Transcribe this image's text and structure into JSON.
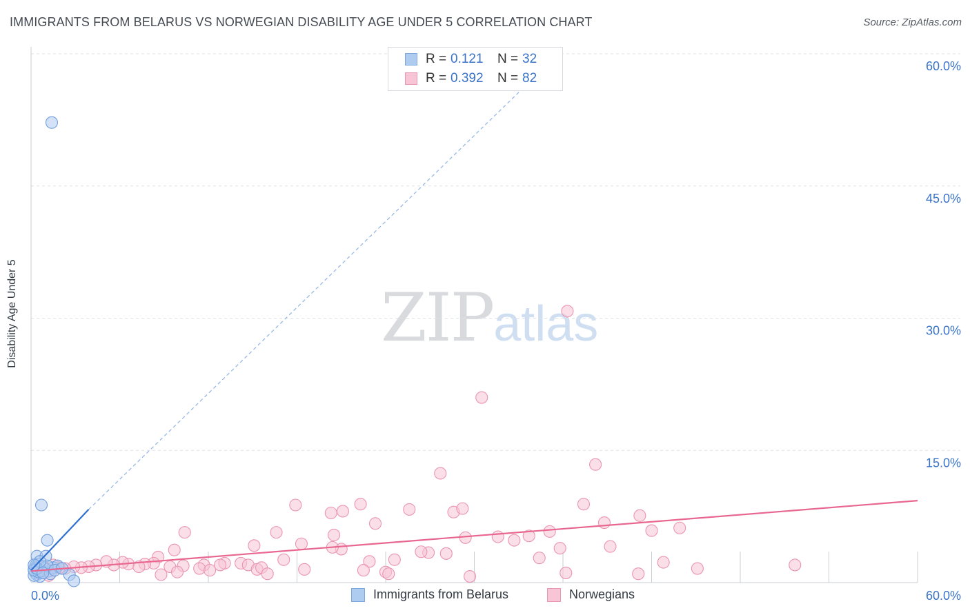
{
  "title": "IMMIGRANTS FROM BELARUS VS NORWEGIAN DISABILITY AGE UNDER 5 CORRELATION CHART",
  "source": "Source: ZipAtlas.com",
  "watermark": {
    "zip": "ZIP",
    "atlas": "atlas"
  },
  "legend_top": [
    {
      "r_label": "R =",
      "r_value": "0.121",
      "n_label": "N =",
      "n_value": "32",
      "color": "#aecbf0",
      "border": "#7da7dd"
    },
    {
      "r_label": "R =",
      "r_value": "0.392",
      "n_label": "N =",
      "n_value": "82",
      "color": "#f7c5d5",
      "border": "#e996b2"
    }
  ],
  "legend_bottom": [
    {
      "label": "Immigrants from Belarus",
      "color": "#aecbf0",
      "border": "#7da7dd"
    },
    {
      "label": "Norwegians",
      "color": "#f7c5d5",
      "border": "#e996b2"
    }
  ],
  "chart_data": {
    "type": "scatter",
    "title": "IMMIGRANTS FROM BELARUS VS NORWEGIAN DISABILITY AGE UNDER 5 CORRELATION CHART",
    "xlabel": "",
    "ylabel": "Disability Age Under 5",
    "xlim": [
      0,
      60
    ],
    "ylim": [
      0,
      60
    ],
    "x_tick_labels": [
      "0.0%",
      "60.0%"
    ],
    "y_ticks": [
      15,
      30,
      45,
      60
    ],
    "y_tick_labels": [
      "15.0%",
      "30.0%",
      "45.0%",
      "60.0%"
    ],
    "grid": true,
    "series": [
      {
        "name": "Immigrants from Belarus",
        "color": "#aecbf0",
        "edge": "#6f9fdc",
        "line_color": "#2f6fd0",
        "trend": {
          "x": [
            0.0,
            3.9
          ],
          "y": [
            1.4,
            8.3
          ]
        },
        "trend_ext": {
          "x": [
            3.9,
            35.7
          ],
          "y": [
            8.3,
            60.0
          ]
        },
        "points": [
          [
            1.4,
            52.2
          ],
          [
            0.7,
            8.8
          ],
          [
            1.1,
            4.8
          ],
          [
            0.4,
            3.0
          ],
          [
            1.0,
            3.0
          ],
          [
            0.3,
            1.9
          ],
          [
            0.5,
            2.1
          ],
          [
            0.2,
            1.5
          ],
          [
            0.6,
            1.4
          ],
          [
            0.8,
            1.8
          ],
          [
            0.3,
            1.1
          ],
          [
            0.4,
            0.9
          ],
          [
            0.6,
            0.7
          ],
          [
            0.2,
            0.8
          ],
          [
            1.2,
            1.3
          ],
          [
            1.5,
            1.7
          ],
          [
            1.8,
            1.9
          ],
          [
            0.9,
            1.6
          ],
          [
            0.5,
            1.2
          ],
          [
            0.3,
            1.7
          ],
          [
            0.7,
            1.3
          ],
          [
            1.3,
            1.0
          ],
          [
            0.2,
            1.4
          ],
          [
            0.4,
            1.6
          ],
          [
            2.6,
            0.9
          ],
          [
            2.9,
            0.2
          ],
          [
            1.1,
            1.9
          ],
          [
            0.8,
            1.1
          ],
          [
            0.6,
            2.4
          ],
          [
            1.6,
            1.4
          ],
          [
            0.2,
            2.0
          ],
          [
            2.1,
            1.6
          ]
        ]
      },
      {
        "name": "Norwegians",
        "color": "#f7c5d5",
        "edge": "#ea94b0",
        "line_color": "#e8668f",
        "trend": {
          "x": [
            0.0,
            60.0
          ],
          "y": [
            1.3,
            9.3
          ]
        },
        "points": [
          [
            36.3,
            30.8
          ],
          [
            30.5,
            21.0
          ],
          [
            38.2,
            13.4
          ],
          [
            27.7,
            12.4
          ],
          [
            22.3,
            8.9
          ],
          [
            17.9,
            8.8
          ],
          [
            21.1,
            8.1
          ],
          [
            20.3,
            7.9
          ],
          [
            25.6,
            8.3
          ],
          [
            28.6,
            8.0
          ],
          [
            29.2,
            8.4
          ],
          [
            37.4,
            8.9
          ],
          [
            41.2,
            7.6
          ],
          [
            38.8,
            6.8
          ],
          [
            23.3,
            6.7
          ],
          [
            16.6,
            5.7
          ],
          [
            20.5,
            5.4
          ],
          [
            10.4,
            5.7
          ],
          [
            43.9,
            6.2
          ],
          [
            42.0,
            5.9
          ],
          [
            35.1,
            5.8
          ],
          [
            29.4,
            5.1
          ],
          [
            31.6,
            5.2
          ],
          [
            33.7,
            5.3
          ],
          [
            32.7,
            4.8
          ],
          [
            39.2,
            4.1
          ],
          [
            35.8,
            3.9
          ],
          [
            18.3,
            4.4
          ],
          [
            15.1,
            4.2
          ],
          [
            9.7,
            3.7
          ],
          [
            21.0,
            3.8
          ],
          [
            26.9,
            3.4
          ],
          [
            28.1,
            3.3
          ],
          [
            20.4,
            4.0
          ],
          [
            24.6,
            2.6
          ],
          [
            22.9,
            2.4
          ],
          [
            26.4,
            3.5
          ],
          [
            34.4,
            2.8
          ],
          [
            42.8,
            2.3
          ],
          [
            8.6,
            2.9
          ],
          [
            17.1,
            2.6
          ],
          [
            13.1,
            2.2
          ],
          [
            12.8,
            2.0
          ],
          [
            14.2,
            2.2
          ],
          [
            14.7,
            2.0
          ],
          [
            11.7,
            2.0
          ],
          [
            11.4,
            1.6
          ],
          [
            10.3,
            1.9
          ],
          [
            9.4,
            1.8
          ],
          [
            8.3,
            2.2
          ],
          [
            7.7,
            2.1
          ],
          [
            6.6,
            2.1
          ],
          [
            6.2,
            2.3
          ],
          [
            5.6,
            2.0
          ],
          [
            5.1,
            2.4
          ],
          [
            4.4,
            2.0
          ],
          [
            3.9,
            1.8
          ],
          [
            3.4,
            1.7
          ],
          [
            2.9,
            1.8
          ],
          [
            2.3,
            1.6
          ],
          [
            1.9,
            1.7
          ],
          [
            1.5,
            2.0
          ],
          [
            1.1,
            1.5
          ],
          [
            0.8,
            1.7
          ],
          [
            0.6,
            1.3
          ],
          [
            7.3,
            1.8
          ],
          [
            9.9,
            1.2
          ],
          [
            12.1,
            1.4
          ],
          [
            15.3,
            1.5
          ],
          [
            15.6,
            1.7
          ],
          [
            18.5,
            1.5
          ],
          [
            22.5,
            1.4
          ],
          [
            24.0,
            1.2
          ],
          [
            24.2,
            1.0
          ],
          [
            16.0,
            1.0
          ],
          [
            36.2,
            1.1
          ],
          [
            41.1,
            1.0
          ],
          [
            45.1,
            1.6
          ],
          [
            51.7,
            2.0
          ],
          [
            8.8,
            0.9
          ],
          [
            29.7,
            0.7
          ],
          [
            1.2,
            0.8
          ]
        ]
      }
    ]
  }
}
